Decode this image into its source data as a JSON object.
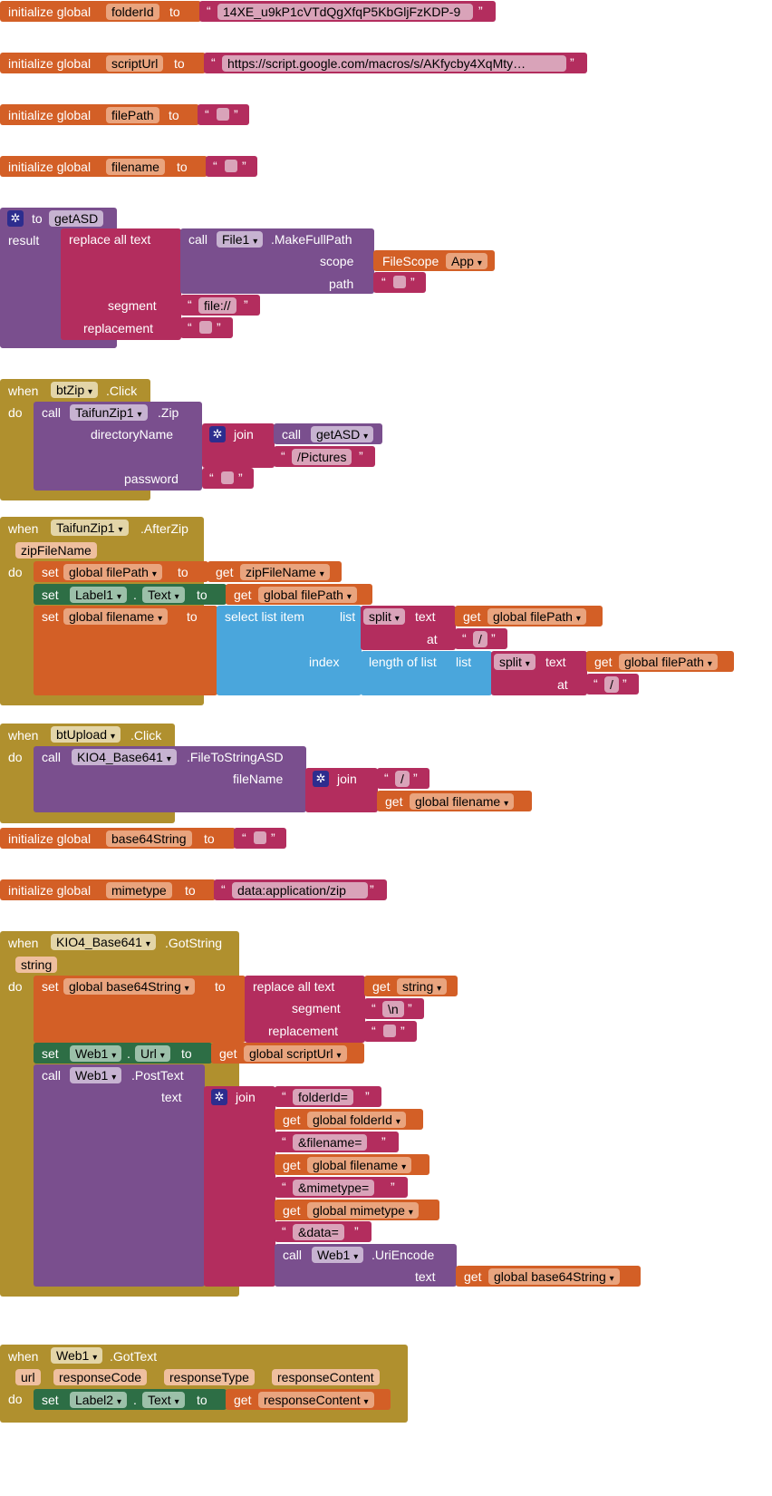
{
  "dd": "▾",
  "q": "“",
  "qc": "”",
  "kw": {
    "init": "initialize global",
    "to": "to",
    "when": "when",
    "do": "do",
    "call": "call",
    "set": "set",
    "get": "get",
    "join": "join",
    "result": "result",
    "replace_all": "replace all text",
    "segment": "segment",
    "replacement": "replacement",
    "scope": "scope",
    "path": "path",
    "directoryName": "directoryName",
    "password": "password",
    "select_item": "select list item",
    "list": "list",
    "index": "index",
    "length_of_list": "length of list",
    "split": "split",
    "text": "text",
    "at": "at",
    "fileName": "fileName",
    "dot": "."
  },
  "g1": {
    "name": "folderId",
    "value": "14XE_u9kP1cVTdQgXfqP5KbGljFzKDP-9"
  },
  "g2": {
    "name": "scriptUrl",
    "value": "https://script.google.com/macros/s/AKfycby4XqMty…"
  },
  "g3": {
    "name": "filePath"
  },
  "g4": {
    "name": "filename"
  },
  "proc": {
    "name": "getASD",
    "component": "File1",
    "method": ".MakeFullPath",
    "filescope": "FileScope",
    "scope_value": "App",
    "segment_value": "file://"
  },
  "zip": {
    "component": "btZip",
    "event": ".Click",
    "target": "TaifunZip1",
    "method": ".Zip",
    "proc_call": "getASD",
    "dir_suffix": "/Pictures"
  },
  "afterzip": {
    "component": "TaifunZip1",
    "event": ".AfterZip",
    "param": "zipFileName",
    "var_filepath": "global filePath",
    "label": "Label1",
    "prop": "Text",
    "var_filename": "global filename",
    "sep": "/"
  },
  "upload": {
    "component": "btUpload",
    "event": ".Click",
    "target": "KIO4_Base641",
    "method": ".FileToStringASD",
    "slash": "/",
    "var_filename": "global filename"
  },
  "g5": {
    "name": "base64String"
  },
  "g6": {
    "name": "mimetype",
    "value": "data:application/zip"
  },
  "gotstring": {
    "component": "KIO4_Base641",
    "event": ".GotString",
    "param": "string",
    "var_b64": "global base64String",
    "newline": "\\n",
    "web": "Web1",
    "prop_url": "Url",
    "var_url": "global scriptUrl",
    "method_post": ".PostText",
    "p1": "folderId=",
    "var_folder": "global folderId",
    "p2": "&filename=",
    "var_filename": "global filename",
    "p3": "&mimetype=",
    "var_mime": "global mimetype",
    "p4": "&data=",
    "method_encode": ".UriEncode"
  },
  "gottext": {
    "component": "Web1",
    "event": ".GotText",
    "params": [
      "url",
      "responseCode",
      "responseType",
      "responseContent"
    ],
    "label": "Label2",
    "prop": "Text",
    "get_param": "responseContent"
  }
}
